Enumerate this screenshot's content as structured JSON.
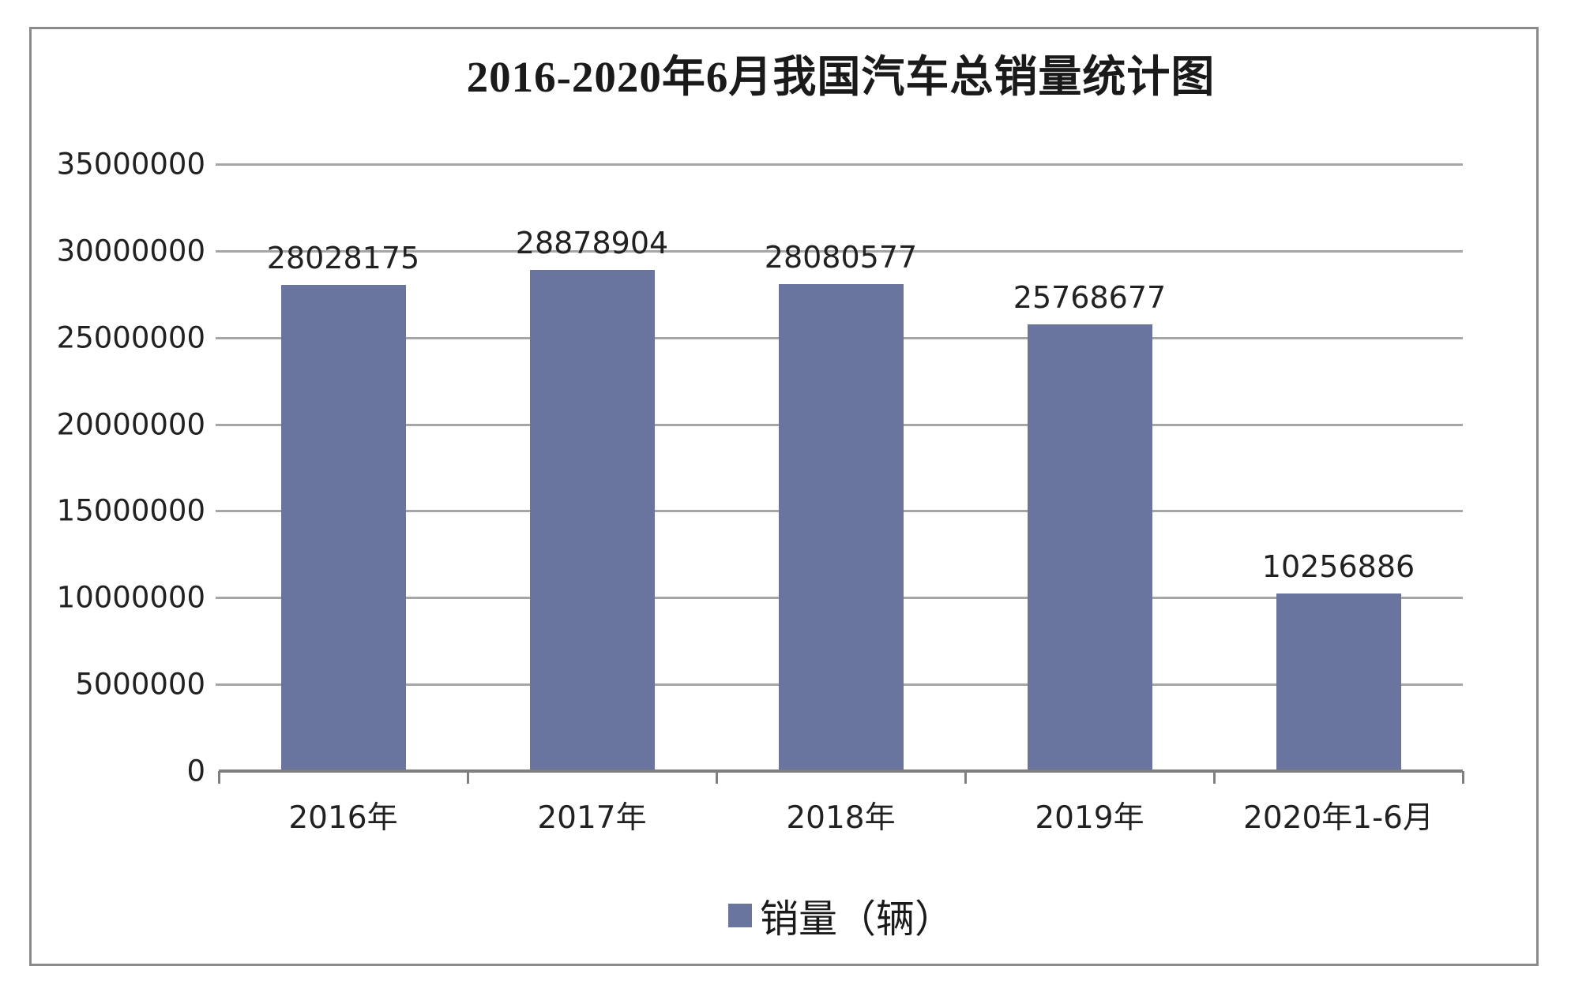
{
  "chart_data": {
    "type": "bar",
    "title": "2016-2020年6月我国汽车总销量统计图",
    "categories": [
      "2016年",
      "2017年",
      "2018年",
      "2019年",
      "2020年1-6月"
    ],
    "series": [
      {
        "name": "销量（辆）",
        "values": [
          28028175,
          28878904,
          28080577,
          25768677,
          10256886
        ]
      }
    ],
    "data_labels": [
      "28028175",
      "28878904",
      "28080577",
      "25768677",
      "10256886"
    ],
    "xlabel": "",
    "ylabel": "",
    "ylim": [
      0,
      35000000
    ],
    "ytick_step": 5000000,
    "yticks": [
      0,
      5000000,
      10000000,
      15000000,
      20000000,
      25000000,
      30000000,
      35000000
    ],
    "ytick_labels": [
      "0",
      "5000000",
      "10000000",
      "15000000",
      "20000000",
      "25000000",
      "30000000",
      "35000000"
    ],
    "grid": true,
    "legend_position": "bottom"
  },
  "legend": {
    "label": "销量（辆）"
  },
  "colors": {
    "bar": "#69759e",
    "gridline": "#a6a6a6",
    "axis": "#7f7f7f",
    "border": "#8a8a8a",
    "text": "#212121"
  }
}
